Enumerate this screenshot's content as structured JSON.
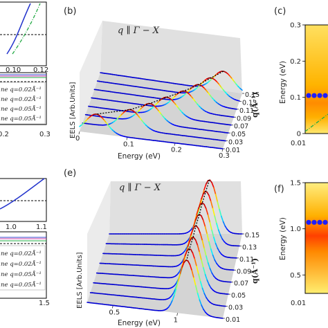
{
  "chart_data": [
    {
      "type": "line",
      "panel": "left-top",
      "x_tick_labels": [
        "0.10",
        "0.12"
      ],
      "x_tick_values": [
        0.1,
        0.12
      ],
      "bottom_tick_labels": [
        "0.2",
        "0.3"
      ],
      "legend": [
        "ne q=0.02Å⁻¹",
        "ne q=0.02Å⁻¹",
        "ne q=0.05Å⁻¹",
        "ne q=0.05Å⁻¹"
      ]
    },
    {
      "type": "line",
      "panel": "b",
      "label": "(b)",
      "title_math": "q ∥ Γ − X",
      "xlabel": "Energy (eV)",
      "ylabel": "EELS [Arb.Units]",
      "zlabel": "q(Å⁻¹)",
      "x_tick_labels": [
        "0",
        "0.1",
        "0.2",
        "0.3"
      ],
      "x_tick_values": [
        0,
        0.1,
        0.2,
        0.3
      ],
      "q_tick_labels": [
        "0.15",
        "0.13",
        "0.11",
        "0.09",
        "0.07",
        "0.05",
        "0.03",
        "0.01"
      ],
      "q_values": [
        0.01,
        0.03,
        0.05,
        0.07,
        0.09,
        0.11,
        0.13,
        0.15
      ],
      "peak_energies": [
        0.035,
        0.1,
        0.135,
        0.165,
        0.195,
        0.22,
        0.24,
        0.26
      ],
      "peak_width": 0.03
    },
    {
      "type": "heatmap",
      "panel": "c",
      "label": "(c)",
      "ylabel": "Energy (eV)",
      "y_tick_labels": [
        "0.3",
        "0.2",
        "0.1",
        "0"
      ],
      "y_tick_values": [
        0.3,
        0.2,
        0.1,
        0
      ],
      "ylim": [
        0,
        0.3
      ],
      "x_tick_labels": [
        "0.01"
      ],
      "dot_energy": 0.105
    },
    {
      "type": "line",
      "panel": "left-bottom",
      "x_tick_labels": [
        "1.0",
        "1.1"
      ],
      "x_tick_values": [
        1.0,
        1.1
      ],
      "bottom_tick_labels": [
        "1.5"
      ],
      "legend": [
        "ne q=0.02Å⁻¹",
        "ne q=0.02Å⁻¹",
        "ne q=0.05Å⁻¹",
        "ne q=0.05Å⁻¹"
      ]
    },
    {
      "type": "line",
      "panel": "e",
      "label": "(e)",
      "title_math": "q ∥ Γ − X",
      "xlabel": "Energy (eV)",
      "ylabel": "EELS [Arb.Units]",
      "zlabel": "q(Å⁻¹)",
      "x_tick_labels": [
        "0.5",
        "1"
      ],
      "x_tick_values": [
        0.5,
        1.0
      ],
      "q_tick_labels": [
        "0.15",
        "0.13",
        "0.11",
        "0.09",
        "0.07",
        "0.05",
        "0.03",
        "0.01"
      ],
      "q_values": [
        0.01,
        0.03,
        0.05,
        0.07,
        0.09,
        0.11,
        0.13,
        0.15
      ],
      "peak_energies": [
        1.07,
        1.07,
        1.075,
        1.075,
        1.08,
        1.08,
        1.085,
        1.09
      ],
      "peak_width": 0.09
    },
    {
      "type": "heatmap",
      "panel": "f",
      "label": "(f)",
      "ylabel": "Energy (eV)",
      "y_tick_labels": [
        "1.5",
        "1.0",
        "0.5"
      ],
      "y_tick_values": [
        1.5,
        1.0,
        0.5
      ],
      "ylim": [
        0.3,
        1.5
      ],
      "x_tick_labels": [
        "0.01"
      ],
      "dot_energy": 1.07
    }
  ]
}
